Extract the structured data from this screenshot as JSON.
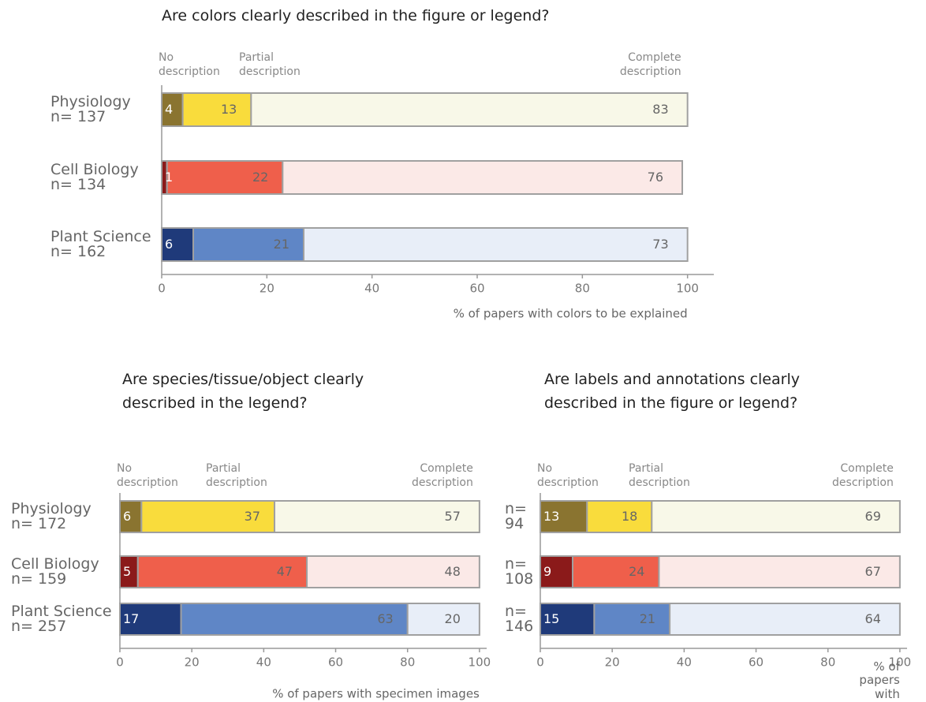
{
  "chart_data": [
    {
      "type": "bar",
      "stacked": true,
      "orientation": "horizontal",
      "title": "Are colors clearly described in the figure or legend?",
      "categories": [
        "Physiology\nn= 137",
        "Cell Biology\nn= 134",
        "Plant Science\nn= 162"
      ],
      "category_colors": [
        [
          "#8a7430",
          "#f9dc3c",
          "#f8f8e8"
        ],
        [
          "#8b1a1a",
          "#ef5f4b",
          "#fbe9e7"
        ],
        [
          "#1f3a7a",
          "#5f86c6",
          "#e8eef8"
        ]
      ],
      "series": [
        {
          "name": "No\ndescription",
          "values": [
            4,
            1,
            6
          ]
        },
        {
          "name": "Partial\ndescription",
          "values": [
            13,
            22,
            21
          ]
        },
        {
          "name": "Complete\ndescription",
          "values": [
            83,
            76,
            73
          ]
        }
      ],
      "xlim": [
        0,
        105
      ],
      "xticks": [
        0,
        20,
        40,
        60,
        80,
        100
      ],
      "x_label": "% of papers with colors to be explained"
    },
    {
      "type": "bar",
      "stacked": true,
      "orientation": "horizontal",
      "title": "Are species/tissue/object clearly\ndescribed in the legend?",
      "categories": [
        "Physiology\nn= 172",
        "Cell Biology\nn= 159",
        "Plant Science\nn= 257"
      ],
      "category_colors": [
        [
          "#8a7430",
          "#f9dc3c",
          "#f8f8e8"
        ],
        [
          "#8b1a1a",
          "#ef5f4b",
          "#fbe9e7"
        ],
        [
          "#1f3a7a",
          "#5f86c6",
          "#e8eef8"
        ]
      ],
      "series": [
        {
          "name": "No\ndescription",
          "values": [
            6,
            5,
            17
          ]
        },
        {
          "name": "Partial\ndescription",
          "values": [
            37,
            47,
            63
          ]
        },
        {
          "name": "Complete\ndescription",
          "values": [
            57,
            48,
            20
          ]
        }
      ],
      "xlim": [
        0,
        102
      ],
      "xticks": [
        0,
        20,
        40,
        60,
        80,
        100
      ],
      "x_label": "% of papers with specimen images"
    },
    {
      "type": "bar",
      "stacked": true,
      "orientation": "horizontal",
      "title": "Are labels and annotations clearly\ndescribed in the figure or legend?",
      "categories": [
        "n=\n94",
        "n=\n108",
        "n=\n146"
      ],
      "category_colors": [
        [
          "#8a7430",
          "#f9dc3c",
          "#f8f8e8"
        ],
        [
          "#8b1a1a",
          "#ef5f4b",
          "#fbe9e7"
        ],
        [
          "#1f3a7a",
          "#5f86c6",
          "#e8eef8"
        ]
      ],
      "series": [
        {
          "name": "No\ndescription",
          "values": [
            13,
            9,
            15
          ]
        },
        {
          "name": "Partial\ndescription",
          "values": [
            18,
            24,
            21
          ]
        },
        {
          "name": "Complete\ndescription",
          "values": [
            69,
            67,
            64
          ]
        }
      ],
      "xlim": [
        0,
        102
      ],
      "xticks": [
        0,
        20,
        40,
        60,
        80,
        100
      ],
      "x_label": "% of papers with labelled images"
    }
  ]
}
